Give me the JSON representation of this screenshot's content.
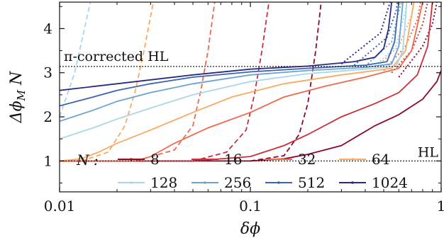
{
  "chart_data": {
    "type": "line",
    "xlabel": "δϕ",
    "ylabel_main": "Δϕ",
    "ylabel_sub": "M",
    "ylabel_tail": " N",
    "xscale": "log",
    "xlim": [
      0.01,
      1
    ],
    "ylim": [
      0.3,
      4.6
    ],
    "xticks": [
      {
        "value": 0.01,
        "label": "0.01"
      },
      {
        "value": 0.1,
        "label": "0.1"
      },
      {
        "value": 1,
        "label": "1"
      }
    ],
    "yticks": [
      {
        "value": 1,
        "label": "1"
      },
      {
        "value": 2,
        "label": "2"
      },
      {
        "value": 3,
        "label": "3"
      },
      {
        "value": 4,
        "label": "4"
      }
    ],
    "legend_title": "N :",
    "legend_placement": "bottom",
    "reference_lines": [
      {
        "y": 1,
        "label": "HL"
      },
      {
        "y": 3.1416,
        "label": "π-corrected HL"
      }
    ],
    "series": [
      {
        "name": "8",
        "color": "#8b0a2a",
        "solid": [
          [
            0.01,
            1
          ],
          [
            0.04,
            1
          ],
          [
            0.1,
            1
          ],
          [
            0.15,
            1.05
          ],
          [
            0.2,
            1.15
          ],
          [
            0.3,
            1.35
          ],
          [
            0.45,
            1.8
          ],
          [
            0.6,
            2.05
          ],
          [
            0.8,
            2.4
          ],
          [
            0.95,
            2.8
          ],
          [
            1,
            3.05
          ]
        ],
        "dashed": [
          [
            0.1,
            1
          ],
          [
            0.15,
            1.12
          ],
          [
            0.18,
            1.6
          ],
          [
            0.2,
            2.3
          ],
          [
            0.22,
            3.5
          ],
          [
            0.235,
            4.6
          ]
        ],
        "dotted": [
          [
            0.6,
            2.9
          ],
          [
            0.8,
            3.6
          ],
          [
            0.9,
            4.1
          ],
          [
            0.95,
            4.6
          ]
        ]
      },
      {
        "name": "16",
        "color": "#c8303c",
        "solid": [
          [
            0.01,
            1
          ],
          [
            0.05,
            1
          ],
          [
            0.1,
            1.1
          ],
          [
            0.15,
            1.35
          ],
          [
            0.2,
            1.6
          ],
          [
            0.3,
            2.0
          ],
          [
            0.45,
            2.3
          ],
          [
            0.6,
            2.55
          ],
          [
            0.75,
            2.95
          ],
          [
            0.85,
            3.6
          ],
          [
            0.9,
            4.6
          ]
        ],
        "dashed": [
          [
            0.05,
            1
          ],
          [
            0.075,
            1.2
          ],
          [
            0.095,
            1.7
          ],
          [
            0.105,
            2.5
          ],
          [
            0.115,
            3.5
          ],
          [
            0.125,
            4.6
          ]
        ],
        "dotted": [
          [
            0.55,
            3.0
          ],
          [
            0.7,
            3.5
          ],
          [
            0.8,
            4.1
          ],
          [
            0.85,
            4.6
          ]
        ]
      },
      {
        "name": "32",
        "color": "#ec6a4e",
        "solid": [
          [
            0.01,
            1
          ],
          [
            0.025,
            1
          ],
          [
            0.03,
            1.1
          ],
          [
            0.04,
            1.4
          ],
          [
            0.06,
            1.75
          ],
          [
            0.1,
            2.1
          ],
          [
            0.15,
            2.45
          ],
          [
            0.25,
            2.7
          ],
          [
            0.4,
            2.9
          ],
          [
            0.6,
            3.1
          ],
          [
            0.7,
            3.5
          ],
          [
            0.8,
            4.6
          ]
        ],
        "dashed": [
          [
            0.025,
            1
          ],
          [
            0.04,
            1.25
          ],
          [
            0.05,
            1.8
          ],
          [
            0.055,
            2.6
          ],
          [
            0.06,
            3.5
          ],
          [
            0.065,
            4.6
          ]
        ],
        "dotted": [
          [
            0.5,
            3.05
          ],
          [
            0.65,
            3.6
          ],
          [
            0.75,
            4.2
          ],
          [
            0.78,
            4.6
          ]
        ]
      },
      {
        "name": "64",
        "color": "#f9aa62",
        "solid": [
          [
            0.01,
            1
          ],
          [
            0.013,
            1.05
          ],
          [
            0.016,
            1.2
          ],
          [
            0.02,
            1.4
          ],
          [
            0.03,
            1.7
          ],
          [
            0.05,
            2.1
          ],
          [
            0.08,
            2.45
          ],
          [
            0.15,
            2.75
          ],
          [
            0.3,
            2.95
          ],
          [
            0.55,
            3.1
          ],
          [
            0.65,
            3.5
          ],
          [
            0.72,
            4.6
          ]
        ],
        "dashed": [
          [
            0.013,
            1
          ],
          [
            0.018,
            1.2
          ],
          [
            0.022,
            1.8
          ],
          [
            0.025,
            2.6
          ],
          [
            0.028,
            3.6
          ],
          [
            0.031,
            4.6
          ]
        ],
        "dotted": [
          [
            0.45,
            3.1
          ],
          [
            0.6,
            3.6
          ],
          [
            0.7,
            4.3
          ],
          [
            0.72,
            4.6
          ]
        ]
      },
      {
        "name": "128",
        "color": "#a9d6e8",
        "solid": [
          [
            0.01,
            1.5
          ],
          [
            0.015,
            1.75
          ],
          [
            0.02,
            1.95
          ],
          [
            0.03,
            2.2
          ],
          [
            0.05,
            2.5
          ],
          [
            0.1,
            2.8
          ],
          [
            0.2,
            2.98
          ],
          [
            0.4,
            3.08
          ],
          [
            0.58,
            3.15
          ],
          [
            0.63,
            3.5
          ],
          [
            0.66,
            4.6
          ]
        ],
        "dashed": [
          [
            0.01,
            2.0
          ],
          [
            0.012,
            3.0
          ],
          [
            0.0135,
            4.0
          ],
          [
            0.0145,
            4.6
          ]
        ],
        "dotted": [
          [
            0.45,
            3.15
          ],
          [
            0.58,
            3.6
          ],
          [
            0.65,
            4.4
          ],
          [
            0.66,
            4.6
          ]
        ]
      },
      {
        "name": "256",
        "color": "#6aa3d2",
        "solid": [
          [
            0.01,
            1.9
          ],
          [
            0.015,
            2.15
          ],
          [
            0.02,
            2.35
          ],
          [
            0.03,
            2.55
          ],
          [
            0.05,
            2.75
          ],
          [
            0.1,
            2.95
          ],
          [
            0.2,
            3.05
          ],
          [
            0.4,
            3.12
          ],
          [
            0.55,
            3.2
          ],
          [
            0.6,
            3.6
          ],
          [
            0.63,
            4.6
          ]
        ],
        "dotted": [
          [
            0.4,
            3.15
          ],
          [
            0.55,
            3.7
          ],
          [
            0.6,
            4.4
          ],
          [
            0.62,
            4.6
          ]
        ]
      },
      {
        "name": "512",
        "color": "#3a64ad",
        "solid": [
          [
            0.01,
            2.25
          ],
          [
            0.015,
            2.45
          ],
          [
            0.02,
            2.6
          ],
          [
            0.03,
            2.75
          ],
          [
            0.05,
            2.9
          ],
          [
            0.1,
            3.02
          ],
          [
            0.2,
            3.1
          ],
          [
            0.4,
            3.17
          ],
          [
            0.52,
            3.25
          ],
          [
            0.57,
            3.7
          ],
          [
            0.6,
            4.6
          ]
        ],
        "dotted": [
          [
            0.35,
            3.17
          ],
          [
            0.52,
            3.8
          ],
          [
            0.58,
            4.4
          ],
          [
            0.59,
            4.6
          ]
        ]
      },
      {
        "name": "1024",
        "color": "#2a2a82",
        "solid": [
          [
            0.01,
            2.6
          ],
          [
            0.02,
            2.75
          ],
          [
            0.05,
            2.95
          ],
          [
            0.1,
            3.08
          ],
          [
            0.2,
            3.15
          ],
          [
            0.35,
            3.25
          ],
          [
            0.45,
            3.35
          ],
          [
            0.5,
            3.55
          ],
          [
            0.53,
            4.0
          ],
          [
            0.55,
            4.6
          ]
        ],
        "dotted": [
          [
            0.3,
            3.2
          ],
          [
            0.48,
            3.9
          ],
          [
            0.54,
            4.6
          ]
        ]
      }
    ]
  }
}
